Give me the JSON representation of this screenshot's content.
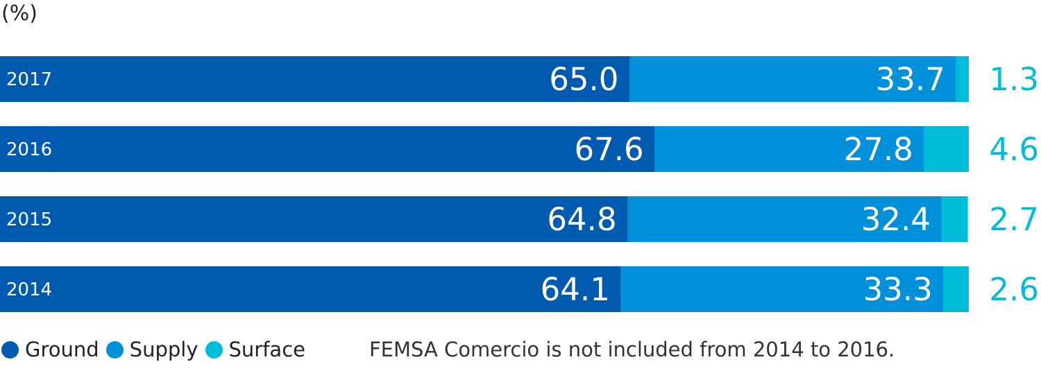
{
  "unit_label": "(%)",
  "note": "FEMSA Comercio is not included from 2014 to 2016.",
  "colors": {
    "Ground": "#005bb0",
    "Supply": "#008fd9",
    "Surface": "#00bcd9"
  },
  "chart_data": {
    "type": "bar",
    "orientation": "horizontal",
    "stacked": true,
    "title": "",
    "xlabel": "",
    "ylabel": "",
    "xlim": [
      0,
      100
    ],
    "grid": false,
    "legend_placement": "bottom-left",
    "categories": [
      "2017",
      "2016",
      "2015",
      "2014"
    ],
    "series": [
      {
        "name": "Ground",
        "values": [
          65.0,
          67.6,
          64.8,
          64.1
        ]
      },
      {
        "name": "Supply",
        "values": [
          33.7,
          27.8,
          32.4,
          33.3
        ]
      },
      {
        "name": "Surface",
        "values": [
          1.3,
          4.6,
          2.7,
          2.6
        ]
      }
    ],
    "value_labels": [
      [
        "65.0",
        "33.7",
        "1.3"
      ],
      [
        "67.6",
        "27.8",
        "4.6"
      ],
      [
        "64.8",
        "32.4",
        "2.7"
      ],
      [
        "64.1",
        "33.3",
        "2.6"
      ]
    ]
  }
}
